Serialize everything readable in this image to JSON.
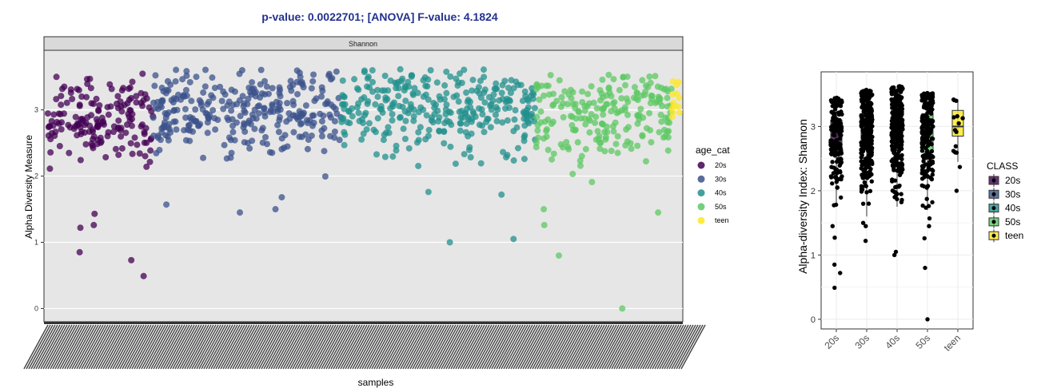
{
  "chart_data": [
    {
      "type": "scatter",
      "title": "p-value: 0.0022701; [ANOVA] F-value: 4.1824",
      "facet_label": "Shannon",
      "xlabel": "samples",
      "ylabel": "Alpha Diversity Measure",
      "ylim": [
        -0.2,
        3.9
      ],
      "yticks": [
        0,
        1,
        2,
        3
      ],
      "grid": true,
      "legend": {
        "title": "age_cat",
        "placement": "right",
        "entries": [
          "20s",
          "30s",
          "40s",
          "50s",
          "teen"
        ]
      },
      "series": [
        {
          "name": "20s",
          "color": "#440154",
          "n": 180,
          "center": 2.85,
          "spread": 0.32,
          "outliers": [
            1.43,
            1.26,
            0.85,
            0.73,
            0.49,
            1.22
          ]
        },
        {
          "name": "30s",
          "color": "#3b528b",
          "n": 320,
          "center": 2.95,
          "spread": 0.33,
          "outliers": [
            1.45,
            1.57,
            1.68,
            1.5
          ]
        },
        {
          "name": "40s",
          "color": "#21908c",
          "n": 330,
          "center": 3.0,
          "spread": 0.32,
          "outliers": [
            1.0,
            1.05,
            1.72,
            1.76
          ]
        },
        {
          "name": "50s",
          "color": "#5dc863",
          "n": 230,
          "center": 2.9,
          "spread": 0.35,
          "outliers": [
            0.0,
            0.8,
            1.26,
            1.45,
            1.5
          ]
        },
        {
          "name": "teen",
          "color": "#fde725",
          "n": 14,
          "center": 3.1,
          "spread": 0.3,
          "outliers": []
        }
      ]
    },
    {
      "type": "box",
      "title": "",
      "xlabel": "",
      "ylabel": "Alpha-diversity Index: Shannon",
      "ylim": [
        -0.15,
        3.85
      ],
      "yticks": [
        0,
        1,
        2,
        3
      ],
      "categories": [
        "20s",
        "30s",
        "40s",
        "50s",
        "teen"
      ],
      "legend": {
        "title": "CLASS",
        "placement": "right",
        "entries": [
          "20s",
          "30s",
          "40s",
          "50s",
          "teen"
        ]
      },
      "groups": [
        {
          "name": "20s",
          "color": "#440154",
          "n": 180,
          "min": 1.75,
          "q1": 2.55,
          "median": 2.85,
          "q3": 3.1,
          "max": 3.45,
          "outliers": [
            1.45,
            1.27,
            0.85,
            0.72,
            0.49
          ]
        },
        {
          "name": "30s",
          "color": "#3b528b",
          "n": 320,
          "min": 1.6,
          "q1": 2.65,
          "median": 2.95,
          "q3": 3.2,
          "max": 3.57,
          "outliers": [
            1.5,
            1.45,
            1.22
          ]
        },
        {
          "name": "40s",
          "color": "#21908c",
          "n": 330,
          "min": 1.75,
          "q1": 2.7,
          "median": 3.0,
          "q3": 3.25,
          "max": 3.63,
          "outliers": [
            1.0,
            1.05
          ]
        },
        {
          "name": "50s",
          "color": "#5dc863",
          "n": 230,
          "min": 1.7,
          "q1": 2.6,
          "median": 2.9,
          "q3": 3.2,
          "max": 3.52,
          "outliers": [
            1.57,
            1.45,
            1.26,
            0.8,
            0.0
          ]
        },
        {
          "name": "teen",
          "color": "#fde725",
          "n": 14,
          "min": 2.45,
          "q1": 2.85,
          "median": 3.0,
          "q3": 3.25,
          "max": 3.42,
          "outliers": [
            2.0,
            2.37
          ]
        }
      ]
    }
  ]
}
